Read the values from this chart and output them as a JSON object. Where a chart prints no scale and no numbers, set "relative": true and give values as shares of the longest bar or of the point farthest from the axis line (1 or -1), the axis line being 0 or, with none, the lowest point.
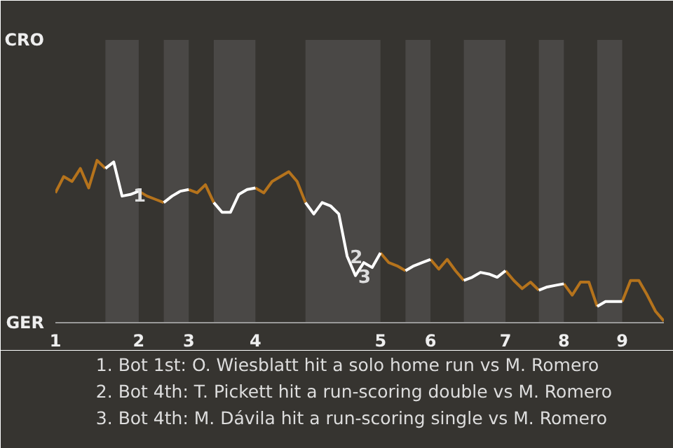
{
  "chart_data": {
    "type": "line",
    "relative": true,
    "categories": [
      "1",
      null,
      null,
      null,
      null,
      null,
      null,
      null,
      null,
      null,
      "2",
      null,
      null,
      null,
      null,
      null,
      "3",
      null,
      null,
      null,
      null,
      null,
      null,
      null,
      "4",
      null,
      null,
      null,
      null,
      null,
      null,
      null,
      null,
      null,
      null,
      null,
      null,
      null,
      null,
      "5",
      null,
      null,
      null,
      null,
      null,
      "6",
      null,
      null,
      null,
      null,
      null,
      null,
      null,
      null,
      "7",
      null,
      null,
      null,
      null,
      null,
      null,
      "8",
      null,
      null,
      null,
      null,
      null,
      null,
      "9",
      null,
      null,
      null,
      null,
      null
    ],
    "series": [
      {
        "color": "#b5731c",
        "values": [
          0.8,
          0.9,
          0.87,
          0.95,
          0.83,
          1,
          0.95,
          null,
          null,
          null,
          0.81,
          0.78,
          0.76,
          0.74,
          null,
          null,
          0.82,
          0.8,
          0.85,
          0.74,
          null,
          null,
          null,
          null,
          0.83,
          0.8,
          0.87,
          0.9,
          0.93,
          0.87,
          0.74,
          null,
          null,
          null,
          null,
          null,
          null,
          null,
          null,
          0.43,
          0.37,
          0.35,
          0.32,
          null,
          null,
          0.39,
          0.33,
          0.39,
          0.32,
          0.26,
          null,
          null,
          null,
          null,
          0.32,
          0.26,
          0.21,
          0.25,
          0.2,
          null,
          null,
          0.24,
          0.17,
          0.25,
          0.25,
          0.1,
          null,
          null,
          0.13,
          0.26,
          0.26,
          0.17,
          0.07,
          0.01
        ]
      },
      {
        "color": "#ffffff",
        "values": [
          null,
          null,
          null,
          null,
          null,
          null,
          0.95,
          0.99,
          0.78,
          0.79,
          0.81,
          null,
          null,
          0.74,
          0.78,
          0.81,
          0.82,
          null,
          null,
          0.74,
          0.68,
          0.68,
          0.79,
          0.82,
          0.83,
          null,
          null,
          null,
          null,
          null,
          0.74,
          0.67,
          0.74,
          0.72,
          0.67,
          0.41,
          0.29,
          0.37,
          0.34,
          0.43,
          null,
          null,
          0.32,
          0.35,
          0.37,
          0.39,
          null,
          null,
          null,
          0.26,
          0.28,
          0.31,
          0.3,
          0.28,
          0.32,
          null,
          null,
          null,
          0.2,
          0.22,
          0.23,
          0.24,
          null,
          null,
          null,
          0.1,
          0.13,
          0.13,
          0.13,
          null,
          null,
          null,
          null,
          null
        ]
      }
    ],
    "annotations": [
      "CRO",
      "GER",
      {
        "text": "1",
        "y": 0.79
      },
      {
        "text": "2",
        "y": 0.41
      },
      {
        "text": "3",
        "y": 0.29
      },
      "1. Bot 1st: O. Wiesblatt hit a solo home run vs M. Romero",
      "2. Bot 4th: T. Pickett hit a run-scoring double vs M. Romero",
      "3. Bot 4th: M. Dávila hit a run-scoring single vs M. Romero"
    ]
  }
}
